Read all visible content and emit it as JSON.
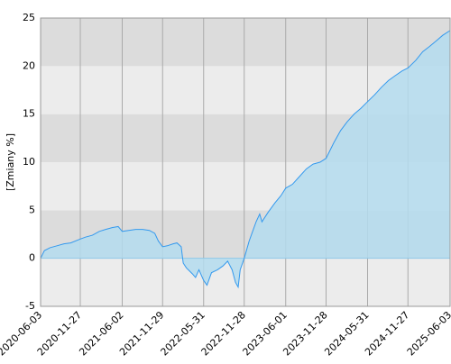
{
  "chart_data": {
    "type": "area",
    "y_label": "[Zmiany %]",
    "x": [
      "2020-06-03",
      "2020-06-20",
      "2020-07-15",
      "2020-08-15",
      "2020-09-15",
      "2020-10-15",
      "2020-11-27",
      "2020-12-20",
      "2021-01-20",
      "2021-02-20",
      "2021-03-20",
      "2021-04-20",
      "2021-05-15",
      "2021-06-02",
      "2021-07-01",
      "2021-08-01",
      "2021-09-01",
      "2021-10-01",
      "2021-10-25",
      "2021-11-10",
      "2021-11-29",
      "2021-12-20",
      "2022-01-15",
      "2022-02-01",
      "2022-02-20",
      "2022-03-01",
      "2022-03-15",
      "2022-04-10",
      "2022-04-25",
      "2022-05-10",
      "2022-05-31",
      "2022-06-15",
      "2022-07-05",
      "2022-08-01",
      "2022-08-25",
      "2022-09-15",
      "2022-10-05",
      "2022-10-20",
      "2022-11-01",
      "2022-11-10",
      "2022-11-28",
      "2022-12-20",
      "2023-01-20",
      "2023-02-05",
      "2023-02-15",
      "2023-03-15",
      "2023-04-15",
      "2023-05-10",
      "2023-06-01",
      "2023-07-01",
      "2023-08-01",
      "2023-09-01",
      "2023-10-01",
      "2023-11-01",
      "2023-11-28",
      "2024-01-01",
      "2024-02-01",
      "2024-03-01",
      "2024-04-01",
      "2024-05-01",
      "2024-05-31",
      "2024-07-01",
      "2024-08-01",
      "2024-09-01",
      "2024-10-01",
      "2024-11-01",
      "2024-11-27",
      "2025-01-01",
      "2025-02-01",
      "2025-03-01",
      "2025-04-01",
      "2025-05-01",
      "2025-06-03"
    ],
    "values": [
      0,
      0.8,
      1.1,
      1.3,
      1.5,
      1.6,
      2.0,
      2.2,
      2.4,
      2.8,
      3.0,
      3.2,
      3.3,
      2.8,
      2.9,
      3.0,
      3.0,
      2.9,
      2.6,
      1.8,
      1.2,
      1.3,
      1.5,
      1.6,
      1.2,
      -0.5,
      -1.0,
      -1.6,
      -2.0,
      -1.2,
      -2.3,
      -2.8,
      -1.5,
      -1.2,
      -0.8,
      -0.3,
      -1.2,
      -2.5,
      -3.0,
      -1.2,
      0.0,
      1.8,
      3.8,
      4.6,
      3.8,
      4.8,
      5.8,
      6.5,
      7.3,
      7.7,
      8.5,
      9.3,
      9.8,
      10.0,
      10.4,
      12.0,
      13.3,
      14.2,
      15.0,
      15.6,
      16.3,
      17.0,
      17.8,
      18.5,
      19.0,
      19.5,
      19.8,
      20.6,
      21.5,
      22.0,
      22.6,
      23.2,
      23.7
    ],
    "line_color": "#3399ee",
    "fill_color": "#b4dcee",
    "xlim": [
      "2020-06-03",
      "2025-06-03"
    ],
    "xticks": [
      "2020-06-03",
      "2020-11-27",
      "2021-06-02",
      "2021-11-29",
      "2022-05-31",
      "2022-11-28",
      "2023-06-01",
      "2023-11-28",
      "2024-05-31",
      "2024-11-27",
      "2025-06-03"
    ],
    "ylim": [
      -5,
      25
    ],
    "yticks": [
      -5,
      0,
      5,
      10,
      15,
      20,
      25
    ],
    "grid": true
  }
}
